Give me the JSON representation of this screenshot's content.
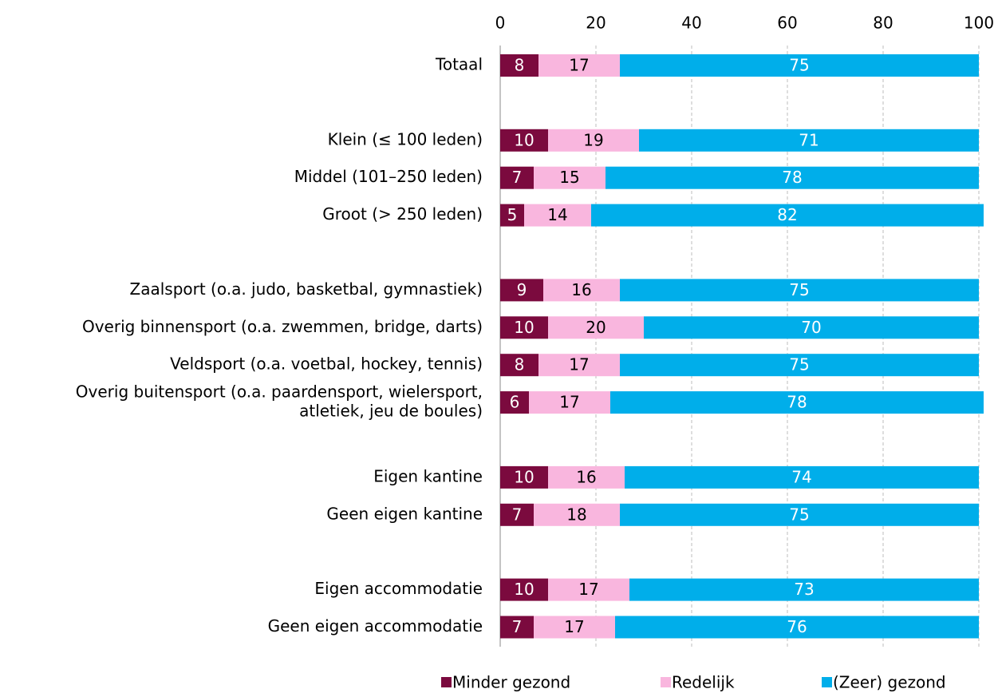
{
  "chart_data": {
    "type": "stacked-bar-horizontal",
    "categories": [
      "Totaal",
      null,
      "Klein (≤ 100 leden)",
      "Middel (101–250 leden)",
      "Groot (> 250 leden)",
      null,
      "Zaalsport (o.a. judo, basketbal, gymnastiek)",
      "Overig binnensport (o.a. zwemmen, bridge, darts)",
      "Veldsport (o.a. voetbal, hockey, tennis)",
      [
        "Overig buitensport (o.a. paardensport, wielersport,",
        "atletiek, jeu de boules)"
      ],
      null,
      "Eigen kantine",
      "Geen eigen kantine",
      null,
      "Eigen accommodatie",
      "Geen eigen accommodatie"
    ],
    "series": [
      {
        "name": "Minder gezond",
        "color": "#7b0a3e",
        "label_color": "#ffffff",
        "values": [
          8,
          null,
          10,
          7,
          5,
          null,
          9,
          10,
          8,
          6,
          null,
          10,
          7,
          null,
          10,
          7
        ]
      },
      {
        "name": "Redelijk",
        "color": "#f9b6de",
        "label_color": "#000000",
        "values": [
          17,
          null,
          19,
          15,
          14,
          null,
          16,
          20,
          17,
          17,
          null,
          16,
          18,
          null,
          17,
          17
        ]
      },
      {
        "name": "(Zeer) gezond",
        "color": "#00aeea",
        "label_color": "#ffffff",
        "values": [
          75,
          null,
          71,
          78,
          82,
          null,
          75,
          70,
          75,
          78,
          null,
          74,
          75,
          null,
          73,
          76
        ]
      }
    ],
    "xlim": [
      0,
      100
    ],
    "xticks": [
      0,
      20,
      40,
      60,
      80,
      100
    ],
    "grid": true,
    "legend": "bottom"
  }
}
